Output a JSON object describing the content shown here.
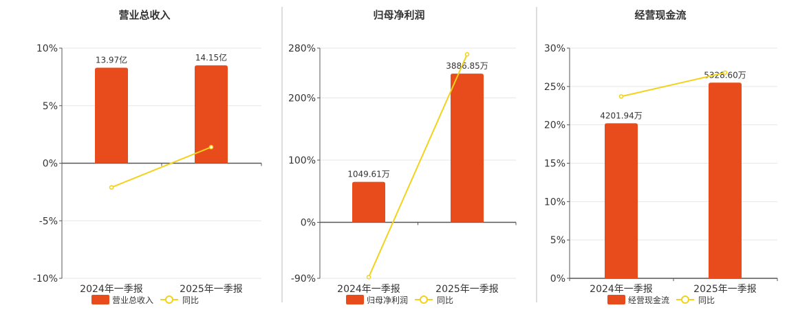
{
  "chart_data": [
    {
      "type": "bar",
      "title": "营业总收入",
      "categories": [
        "2024年一季报",
        "2025年一季报"
      ],
      "ylim": [
        -10,
        10
      ],
      "yticks": [
        10,
        5,
        0,
        -5,
        -10
      ],
      "ytick_labels": [
        "10%",
        "5%",
        "0%",
        "-5%",
        "-10%"
      ],
      "series": [
        {
          "name": "营业总收入",
          "type": "bar",
          "values": [
            8.3,
            8.5
          ],
          "labels": [
            "13.97亿",
            "14.15亿"
          ]
        },
        {
          "name": "同比",
          "type": "line",
          "values": [
            -2.1,
            1.4
          ]
        }
      ],
      "legend": "bottom",
      "grid": true
    },
    {
      "type": "bar",
      "title": "归母净利润",
      "categories": [
        "2024年一季报",
        "2025年一季报"
      ],
      "ylim": [
        -90,
        280
      ],
      "yticks": [
        280,
        200,
        100,
        0,
        -90
      ],
      "ytick_labels": [
        "280%",
        "200%",
        "100%",
        "0%",
        "-90%"
      ],
      "series": [
        {
          "name": "归母净利润",
          "type": "bar",
          "values": [
            65,
            239
          ],
          "labels": [
            "1049.61万",
            "3886.85万"
          ]
        },
        {
          "name": "同比",
          "type": "line",
          "values": [
            -88,
            270
          ]
        }
      ],
      "legend": "bottom",
      "grid": true
    },
    {
      "type": "bar",
      "title": "经营现金流",
      "categories": [
        "2024年一季报",
        "2025年一季报"
      ],
      "ylim": [
        0,
        30
      ],
      "yticks": [
        30,
        25,
        20,
        15,
        10,
        5,
        0
      ],
      "ytick_labels": [
        "30%",
        "25%",
        "20%",
        "15%",
        "10%",
        "5%",
        "0%"
      ],
      "series": [
        {
          "name": "经营现金流",
          "type": "bar",
          "values": [
            20.2,
            25.5
          ],
          "labels": [
            "4201.94万",
            "5328.60万"
          ]
        },
        {
          "name": "同比",
          "type": "line",
          "values": [
            23.7,
            26.8
          ]
        }
      ],
      "legend": "bottom",
      "grid": true
    }
  ],
  "colors": {
    "bar": "#e84c1c",
    "line": "#f2d21a",
    "grid": "#e6e6e6",
    "axis": "#555555",
    "divider": "#bbbbbb",
    "title": "#333333",
    "text": "#333333"
  }
}
